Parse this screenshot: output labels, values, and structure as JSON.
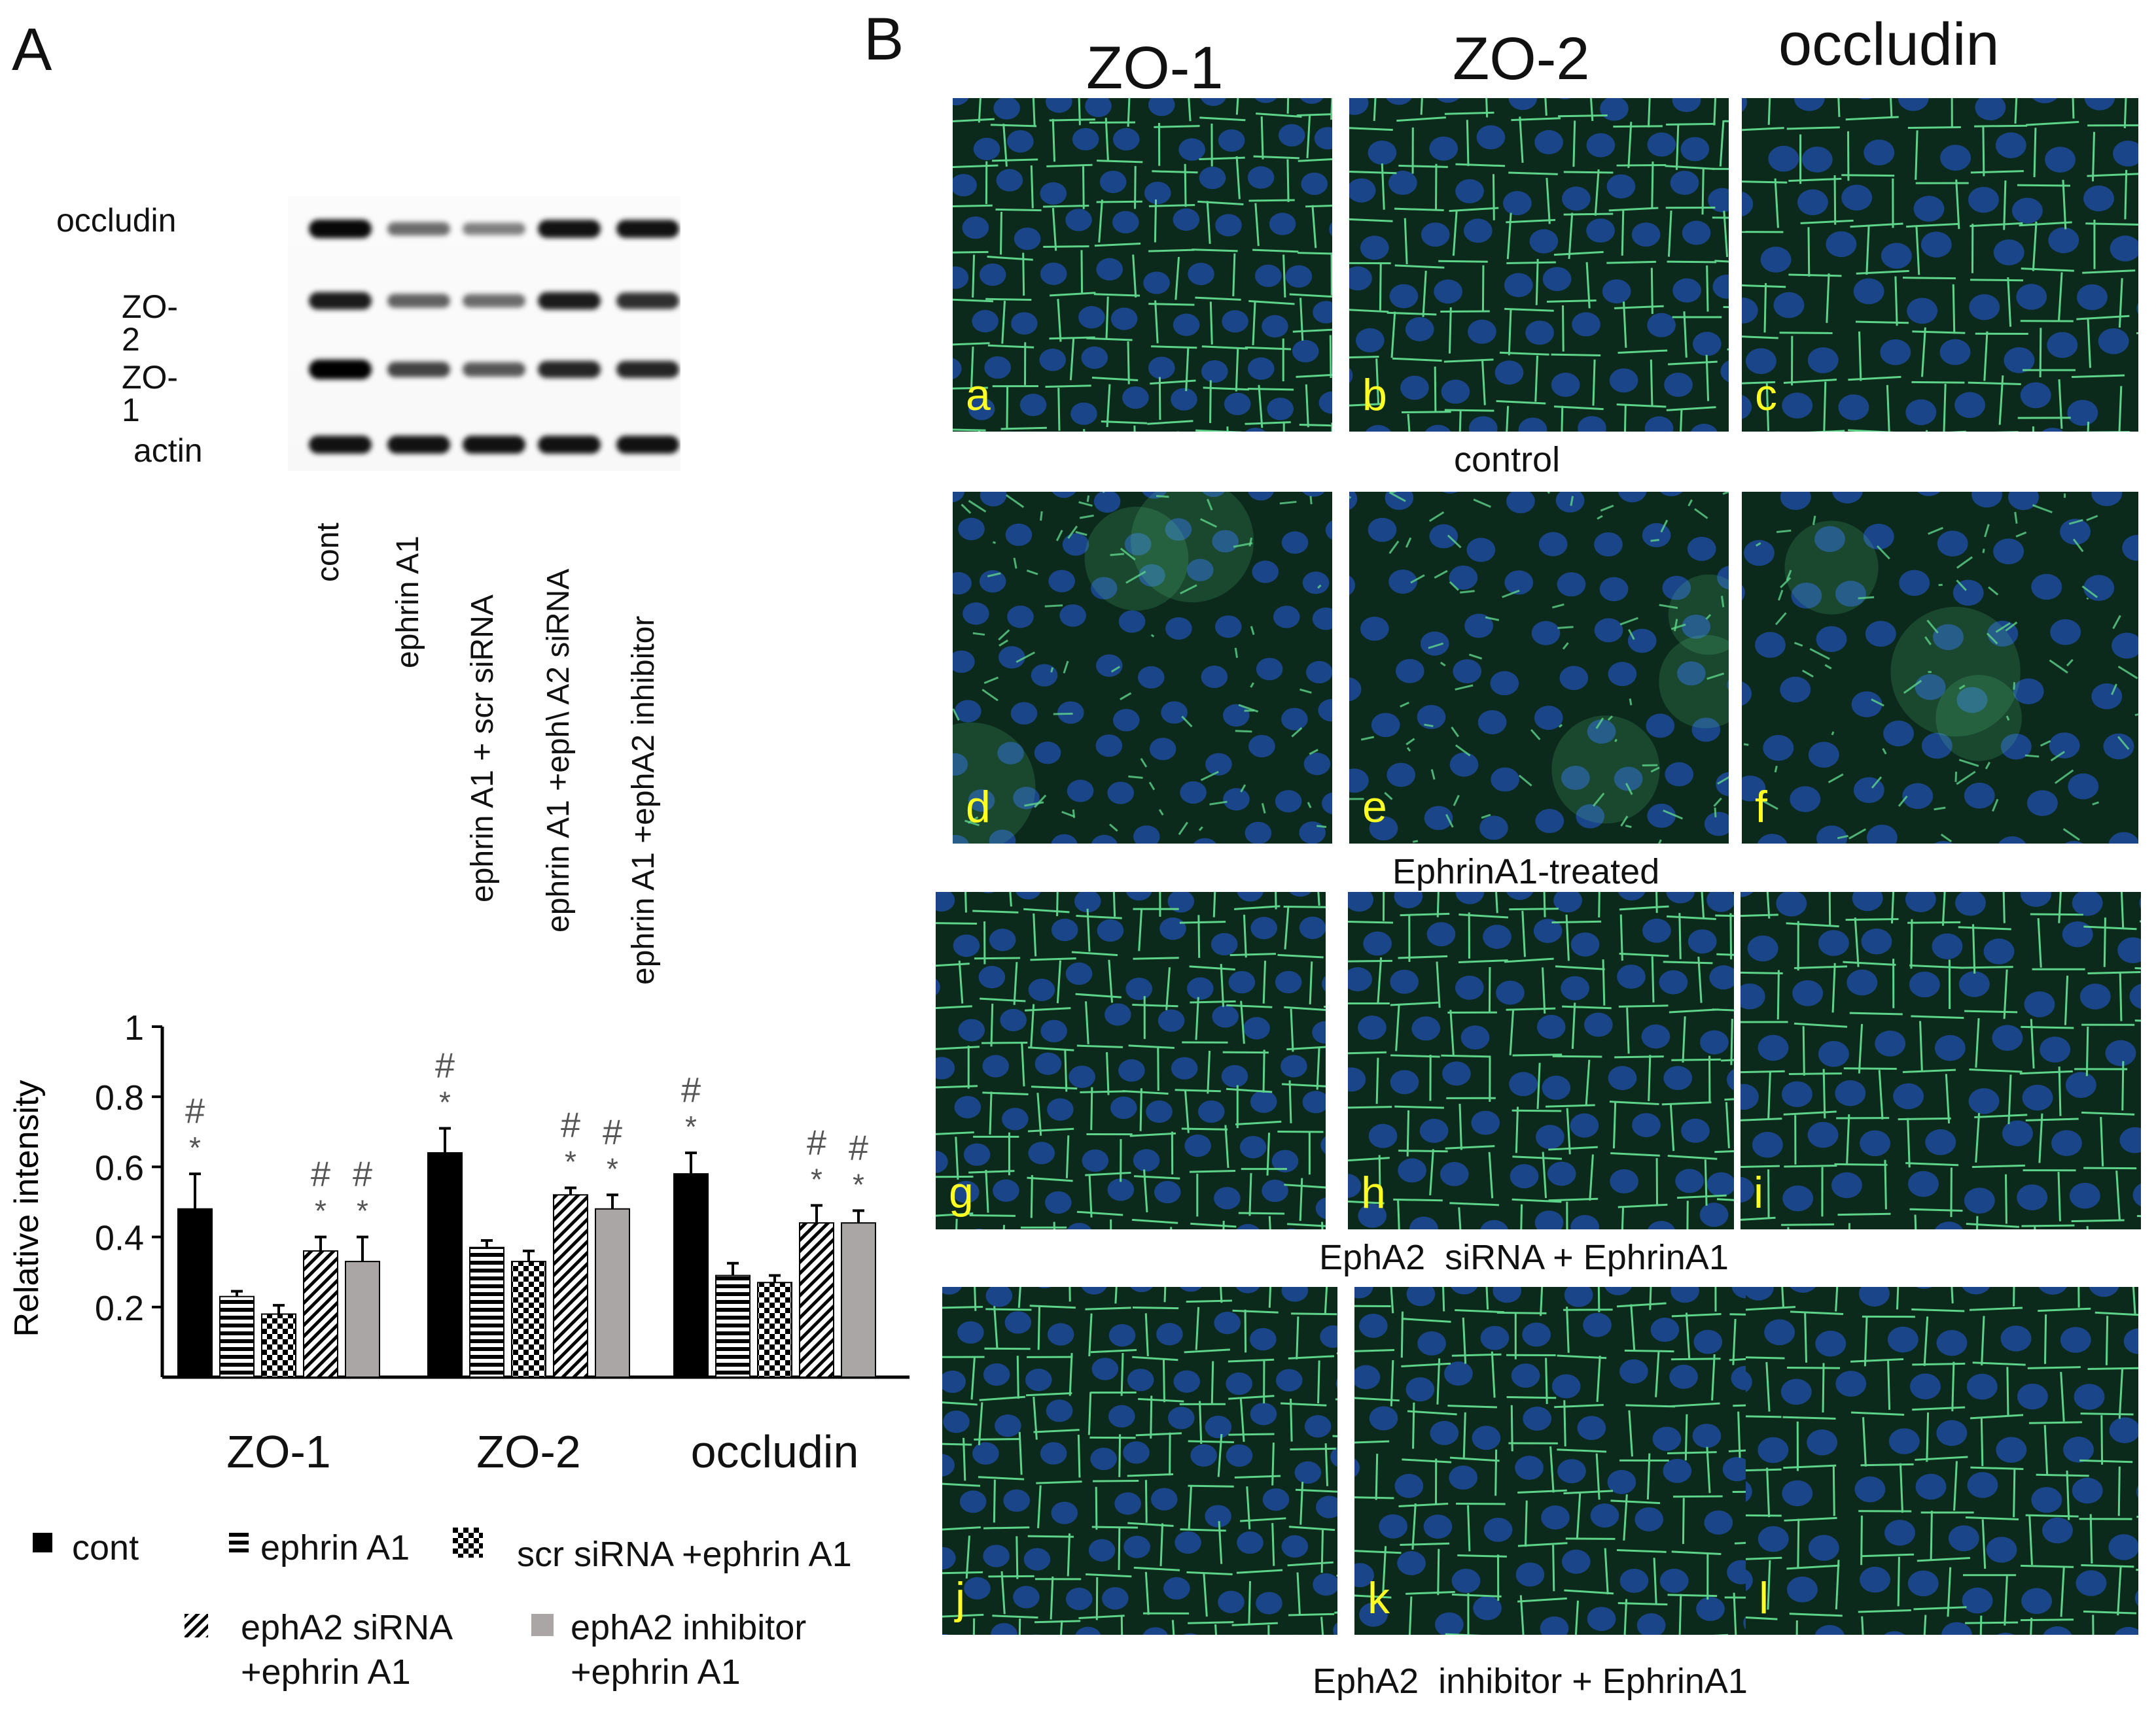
{
  "panel_a": {
    "letter": "A",
    "blot_rows": [
      "occludin",
      "ZO-2",
      "ZO-1",
      "actin"
    ],
    "lanes": [
      "cont",
      "ephrin A1",
      "ephrin A1 + scr siRNA",
      "ephrin A1 +eph\\ A2 siRNA",
      "ephrin A1 +ephA2 inhibitor"
    ],
    "band_strength": {
      "occludin": [
        0.9,
        0.4,
        0.3,
        0.85,
        0.85
      ],
      "ZO-2": [
        0.8,
        0.45,
        0.4,
        0.8,
        0.7
      ],
      "ZO-1": [
        1.0,
        0.6,
        0.5,
        0.75,
        0.75
      ],
      "actin": [
        0.85,
        0.85,
        0.85,
        0.85,
        0.85
      ]
    },
    "legend": [
      {
        "label": "cont",
        "pattern": "solid-black"
      },
      {
        "label": "ephrin A1",
        "pattern": "horizontal-stripes"
      },
      {
        "label": "scr siRNA +ephrin A1",
        "pattern": "checker"
      },
      {
        "label": "ephA2 siRNA\n+ephrin A1",
        "pattern": "diagonal-stripes"
      },
      {
        "label": "ephA2 inhibitor\n+ephrin A1",
        "pattern": "solid-gray"
      }
    ]
  },
  "chart_data": {
    "type": "bar",
    "ylabel": "Relative intensity",
    "xlabel": "",
    "ylim": [
      0,
      1
    ],
    "yticks": [
      "0.2",
      "0.4",
      "0.6",
      "0.8",
      "1"
    ],
    "categories": [
      "ZO-1",
      "ZO-2",
      "occludin"
    ],
    "series": [
      {
        "name": "cont",
        "values": [
          0.48,
          0.64,
          0.58
        ],
        "errors": [
          0.1,
          0.07,
          0.06
        ],
        "markers": [
          "*#",
          "*#",
          "*#"
        ],
        "fill": "#000000",
        "pattern": "solid"
      },
      {
        "name": "ephrin A1",
        "values": [
          0.23,
          0.37,
          0.29
        ],
        "errors": [
          0.015,
          0.02,
          0.035
        ],
        "markers": [
          "",
          "",
          ""
        ],
        "fill": "#ffffff",
        "pattern": "horizontal"
      },
      {
        "name": "scr siRNA +ephrin A1",
        "values": [
          0.18,
          0.33,
          0.27
        ],
        "errors": [
          0.025,
          0.03,
          0.02
        ],
        "markers": [
          "",
          "",
          ""
        ],
        "fill": "#ffffff",
        "pattern": "checker"
      },
      {
        "name": "ephA2 siRNA +ephrin A1",
        "values": [
          0.36,
          0.52,
          0.44
        ],
        "errors": [
          0.04,
          0.02,
          0.05
        ],
        "markers": [
          "*#",
          "*#",
          "*#"
        ],
        "fill": "#ffffff",
        "pattern": "diagonal"
      },
      {
        "name": "ephA2 inhibitor +ephrin A1",
        "values": [
          0.33,
          0.48,
          0.44
        ],
        "errors": [
          0.07,
          0.04,
          0.035
        ],
        "markers": [
          "*#",
          "*#",
          "*#"
        ],
        "fill": "#aaa6a6",
        "pattern": "solid"
      }
    ],
    "marker_symbols": {
      "asterisk": "*",
      "hash": "#"
    }
  },
  "panel_b": {
    "letter": "B",
    "column_headers": [
      "ZO-1",
      "ZO-2",
      "occludin"
    ],
    "rows": [
      {
        "caption": "control",
        "letters": [
          "a",
          "b",
          "c"
        ],
        "style": "intact"
      },
      {
        "caption": "EphrinA1-treated",
        "letters": [
          "d",
          "e",
          "f"
        ],
        "style": "disrupted"
      },
      {
        "caption": "EphA2  siRNA + EphrinA1",
        "letters": [
          "g",
          "h",
          "i"
        ],
        "style": "intact"
      },
      {
        "caption": "EphA2  inhibitor + EphrinA1",
        "letters": [
          "j",
          "k",
          "l"
        ],
        "style": "intact"
      }
    ],
    "colors": {
      "background": "#0c2a1c",
      "membrane": "#5ed48a",
      "nucleus": "#1f4fae",
      "letter": "#ffff22"
    }
  }
}
